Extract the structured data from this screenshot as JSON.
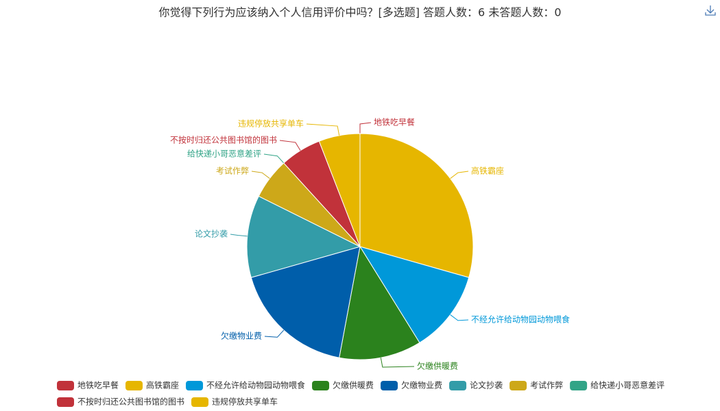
{
  "chart_data": {
    "type": "pie",
    "title": "你觉得下列行为应该纳入个人信用评价中吗？[多选题]  答题人数：6  未答题人数：0",
    "categories": [
      "地铁吃早餐",
      "高铁霸座",
      "不经允许给动物园动物喂食",
      "欠缴供暖费",
      "欠缴物业费",
      "论文抄袭",
      "考试作弊",
      "给快递小哥恶意差评",
      "不按时归还公共图书馆的图书",
      "违规停放共享单车"
    ],
    "values": [
      0,
      5,
      2,
      2,
      3,
      2,
      1,
      0,
      1,
      1
    ],
    "colors": [
      "#c1323a",
      "#e6b600",
      "#0098d9",
      "#2b821d",
      "#005eaa",
      "#339ca8",
      "#cda819",
      "#32a487",
      "#c1323a",
      "#e6b600"
    ],
    "legend": "bottom"
  }
}
